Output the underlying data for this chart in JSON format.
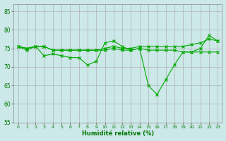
{
  "xlabel": "Humidité relative (%)",
  "background_color": "#cce8e8",
  "grid_color": "#b0b0b0",
  "line_color": "#00aa00",
  "ylim": [
    55,
    87
  ],
  "yticks": [
    55,
    60,
    65,
    70,
    75,
    80,
    85
  ],
  "xlim": [
    -0.5,
    23.5
  ],
  "xticks": [
    0,
    1,
    2,
    3,
    4,
    5,
    6,
    7,
    8,
    9,
    10,
    11,
    12,
    13,
    14,
    15,
    16,
    17,
    18,
    19,
    20,
    21,
    22,
    23
  ],
  "series1": [
    75.5,
    74.5,
    75.5,
    73.0,
    73.5,
    73.0,
    72.5,
    72.5,
    70.5,
    71.5,
    76.5,
    77.0,
    75.5,
    74.5,
    75.0,
    65.0,
    62.5,
    66.5,
    70.5,
    74.0,
    74.0,
    75.0,
    78.5,
    77.0
  ],
  "series2": [
    75.5,
    75.0,
    75.5,
    75.5,
    74.5,
    74.5,
    74.5,
    74.5,
    74.5,
    74.5,
    75.0,
    75.5,
    75.0,
    75.0,
    75.5,
    75.5,
    75.5,
    75.5,
    75.5,
    75.5,
    76.0,
    76.5,
    77.5,
    77.0
  ],
  "series3": [
    75.5,
    75.0,
    75.5,
    75.5,
    74.5,
    74.5,
    74.5,
    74.5,
    74.5,
    74.5,
    74.5,
    75.0,
    74.5,
    74.5,
    75.0,
    74.5,
    74.5,
    74.5,
    74.5,
    74.0,
    74.0,
    74.0,
    74.0,
    74.0
  ]
}
